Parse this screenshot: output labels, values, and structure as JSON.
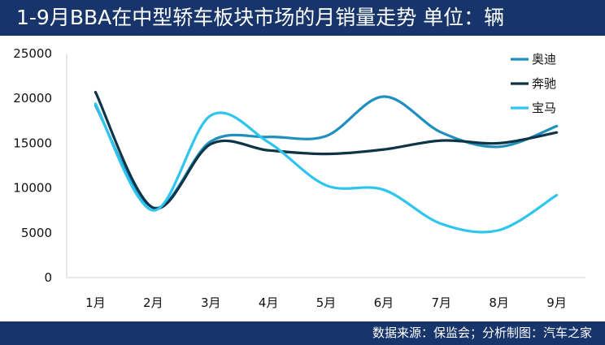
{
  "header": {
    "title": "1-9月BBA在中型轿车板块市场的月销量走势  单位：辆"
  },
  "footer": {
    "source": "数据来源：保监会；分析制图：汽车之家"
  },
  "chart_data": {
    "type": "line",
    "title": "1-9月BBA在中型轿车板块市场的月销量走势  单位：辆",
    "xlabel": "",
    "ylabel": "",
    "categories": [
      "1月",
      "2月",
      "3月",
      "4月",
      "5月",
      "6月",
      "7月",
      "8月",
      "9月"
    ],
    "ylim": [
      0,
      25000
    ],
    "yticks": [
      0,
      5000,
      10000,
      15000,
      20000,
      25000
    ],
    "grid": false,
    "legend_position": "top-right",
    "smooth": true,
    "series": [
      {
        "name": "奥迪",
        "color": "#1f8fbf",
        "values": [
          19200,
          7800,
          15200,
          15700,
          15800,
          20200,
          16200,
          14600,
          16900
        ]
      },
      {
        "name": "奔驰",
        "color": "#0d3447",
        "values": [
          20700,
          7800,
          14900,
          14200,
          13800,
          14300,
          15300,
          15000,
          16200
        ]
      },
      {
        "name": "宝马",
        "color": "#2ec5ee",
        "values": [
          19400,
          7500,
          18100,
          15100,
          10300,
          9800,
          6000,
          5300,
          9200
        ]
      }
    ]
  }
}
